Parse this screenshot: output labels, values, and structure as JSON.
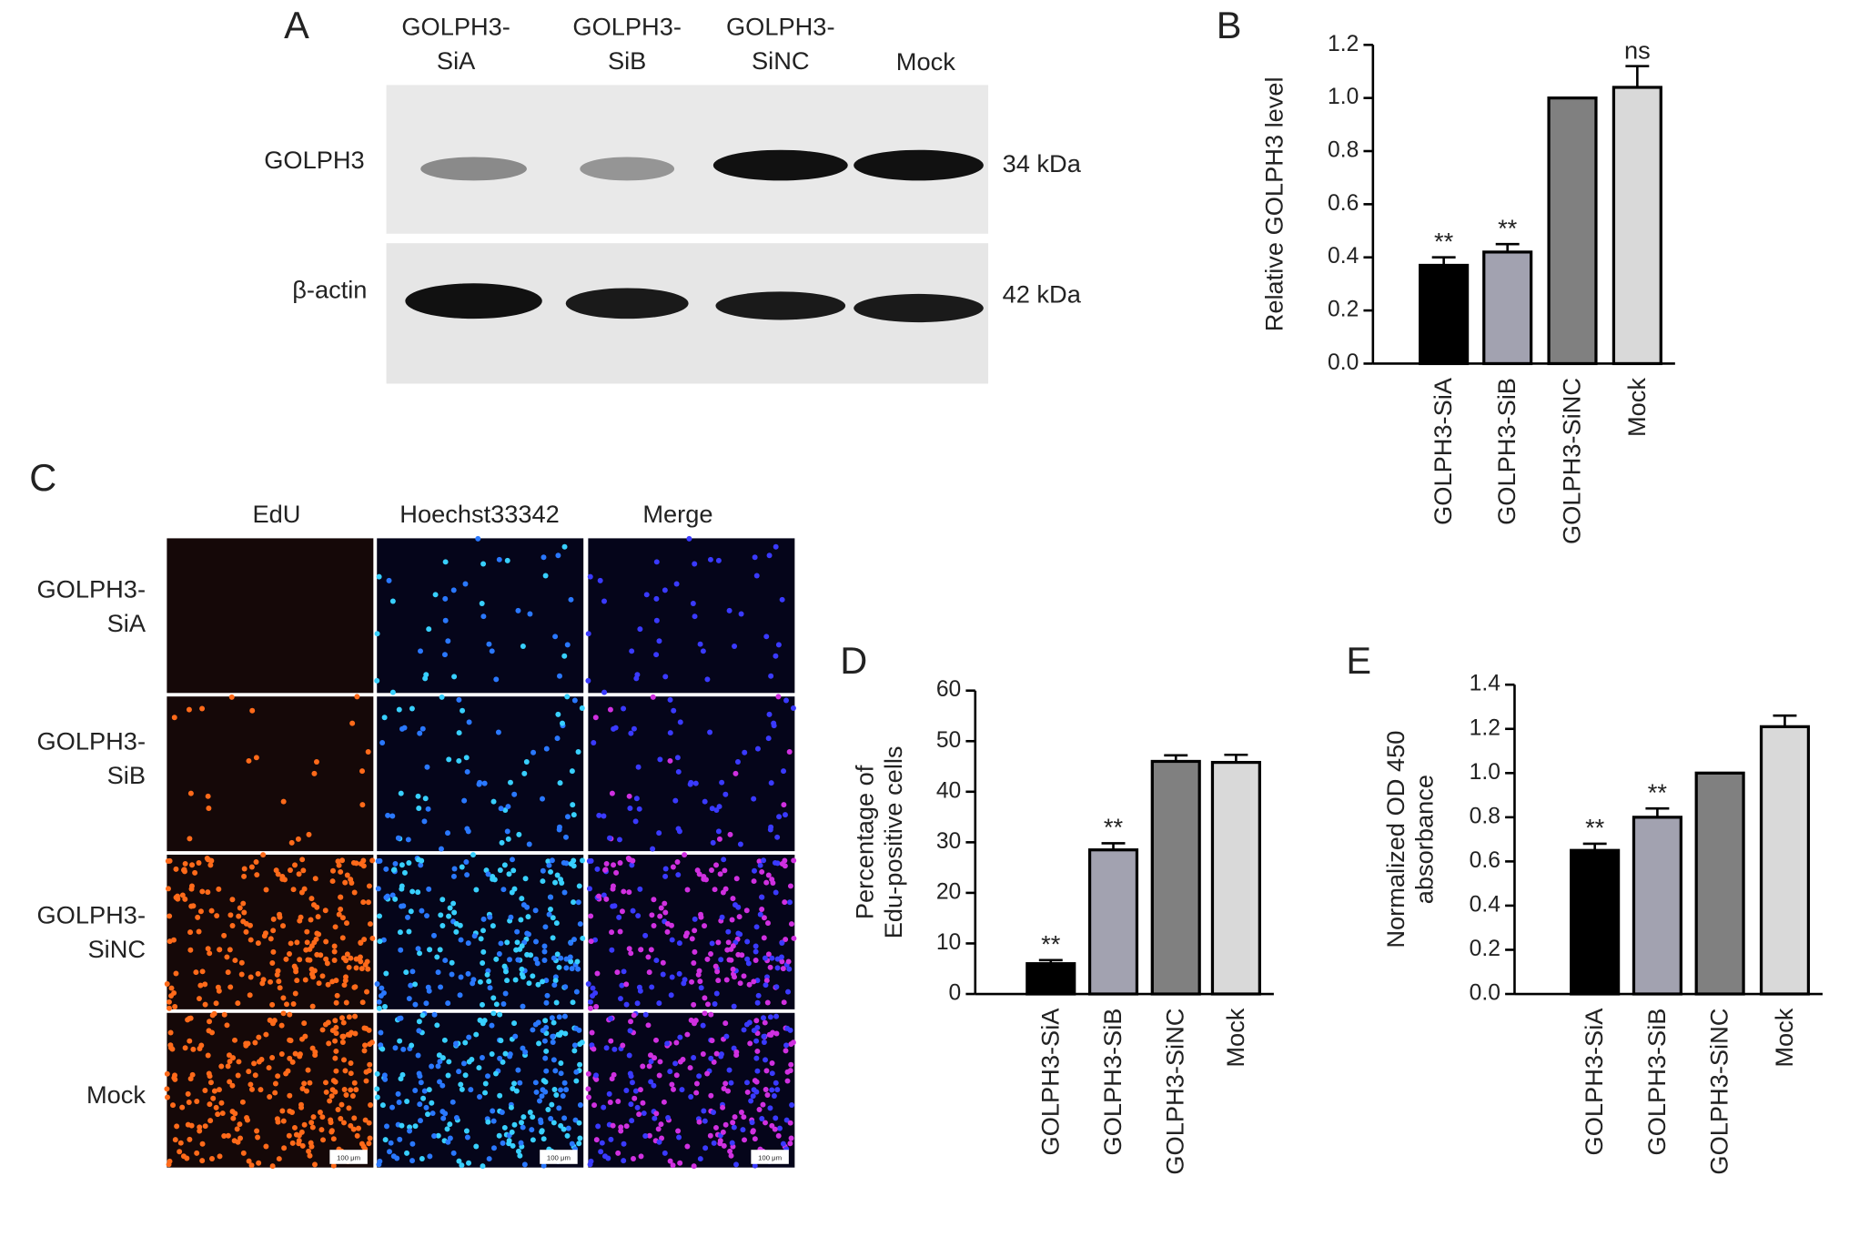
{
  "panel_labels": [
    "A",
    "B",
    "C",
    "D",
    "E"
  ],
  "blot": {
    "lanes": [
      [
        "GOLPH3-",
        "SiA"
      ],
      [
        "GOLPH3-",
        "SiB"
      ],
      [
        "GOLPH3-",
        "SiNC"
      ],
      [
        "Mock"
      ]
    ],
    "rows": [
      "GOLPH3",
      "β-actin"
    ],
    "sizes": [
      "34 kDa",
      "42 kDa"
    ]
  },
  "microscopy": {
    "columns": [
      "EdU",
      "Hoechst33342",
      "Merge"
    ],
    "rows": [
      [
        "GOLPH3-",
        "SiA"
      ],
      [
        "GOLPH3-",
        "SiB"
      ],
      [
        "GOLPH3-",
        "SiNC"
      ],
      [
        "Mock"
      ]
    ],
    "scale_bar": "100 μm"
  },
  "chart_data": [
    {
      "type": "bar",
      "ylabel": [
        "Relative GOLPH3 level"
      ],
      "categories": [
        "GOLPH3-SiA",
        "GOLPH3-SiB",
        "GOLPH3-SiNC",
        "Mock"
      ],
      "values": [
        0.37,
        0.42,
        1.0,
        1.04
      ],
      "errors": [
        0.03,
        0.03,
        0,
        0.08
      ],
      "annotations": [
        "**",
        "**",
        null,
        "ns"
      ],
      "colors": [
        "#000000",
        "#a2a2b0",
        "#808080",
        "#d9d9d9"
      ],
      "ylim": [
        0,
        1.2
      ],
      "yticks": [
        {
          "value": 0,
          "label": "0.0"
        },
        0.2,
        0.4,
        0.6,
        0.8,
        {
          "value": 1,
          "label": "1.0"
        },
        1.2
      ]
    },
    {
      "type": "bar",
      "ylabel": [
        "Percentage of",
        "Edu-positive cells"
      ],
      "categories": [
        "GOLPH3-SiA",
        "GOLPH3-SiB",
        "GOLPH3-SiNC",
        "Mock"
      ],
      "values": [
        6,
        28.5,
        46,
        45.8
      ],
      "errors": [
        0.7,
        1.3,
        1.2,
        1.5
      ],
      "annotations": [
        "**",
        "**",
        null,
        null
      ],
      "colors": [
        "#000000",
        "#a2a2b0",
        "#808080",
        "#d9d9d9"
      ],
      "ylim": [
        0,
        60
      ],
      "yticks": [
        0,
        10,
        20,
        30,
        40,
        50,
        60
      ]
    },
    {
      "type": "bar",
      "ylabel": [
        "Normalized OD 450",
        "absorbance"
      ],
      "categories": [
        "GOLPH3-SiA",
        "GOLPH3-SiB",
        "GOLPH3-SiNC",
        "Mock"
      ],
      "values": [
        0.65,
        0.8,
        1.0,
        1.21
      ],
      "errors": [
        0.03,
        0.04,
        0,
        0.05
      ],
      "annotations": [
        "**",
        "**",
        null,
        null
      ],
      "colors": [
        "#000000",
        "#a2a2b0",
        "#808080",
        "#d9d9d9"
      ],
      "ylim": [
        0,
        1.4
      ],
      "yticks": [
        {
          "value": 0,
          "label": "0.0"
        },
        0.2,
        0.4,
        0.6,
        0.8,
        {
          "value": 1,
          "label": "1.0"
        },
        1.2,
        1.4
      ]
    }
  ]
}
